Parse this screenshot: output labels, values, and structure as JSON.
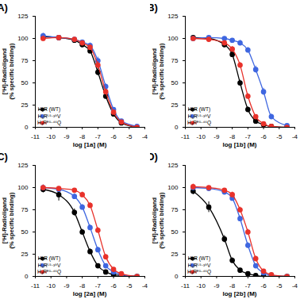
{
  "chart_data": [
    {
      "type": "line",
      "title": "A)",
      "xlabel": "log [1a] (M)",
      "ylabel": "[³H]-Radioligand\n(% specific binding)",
      "xlim": [
        -11,
        -4
      ],
      "xticks": [
        -11,
        -10,
        -9,
        -8,
        -7,
        -6,
        -5,
        -4
      ],
      "ylim": [
        0,
        125
      ],
      "yticks": [
        0,
        25,
        50,
        75,
        100,
        125
      ],
      "legend": "lower left",
      "x": [
        -10.5,
        -9.5,
        -8.5,
        -8,
        -7.5,
        -7,
        -6.5,
        -6,
        -5.5,
        -4.5
      ],
      "series": [
        {
          "name": "H₄R (WT)",
          "color": "#000000",
          "marker": "circle",
          "values": [
            102,
            101,
            98,
            93,
            86,
            62,
            35,
            15,
            5,
            0
          ],
          "errors": [
            3,
            2,
            2,
            2,
            3,
            4,
            3,
            2,
            2,
            1
          ]
        },
        {
          "name": "H₄Rᴸ⁵·³⁹V",
          "color": "#3f67e0",
          "marker": "circle",
          "values": [
            103,
            101,
            99,
            96,
            92,
            75,
            46,
            20,
            7,
            1
          ],
          "errors": [
            3,
            2,
            2,
            2,
            3,
            4,
            3,
            2,
            2,
            1
          ]
        },
        {
          "name": "H₄Rᴱ⁵·⁴⁶Q",
          "color": "#e8322b",
          "marker": "circle",
          "values": [
            100,
            101,
            99,
            95,
            90,
            70,
            40,
            17,
            6,
            0
          ],
          "errors": [
            3,
            2,
            2,
            2,
            3,
            4,
            3,
            2,
            2,
            1
          ]
        }
      ]
    },
    {
      "type": "line",
      "title": "B)",
      "xlabel": "log [1b] (M)",
      "ylabel": "[³H]-Radioligand\n(% specific binding)",
      "xlim": [
        -11,
        -4
      ],
      "xticks": [
        -11,
        -10,
        -9,
        -8,
        -7,
        -6,
        -5,
        -4
      ],
      "ylim": [
        0,
        125
      ],
      "yticks": [
        0,
        25,
        50,
        75,
        100,
        125
      ],
      "legend": "lower left",
      "x": [
        -10.5,
        -9.5,
        -8.5,
        -8,
        -7.5,
        -7,
        -6.5,
        -6,
        -5.5,
        -4.5
      ],
      "series": [
        {
          "name": "H₄R (WT)",
          "color": "#000000",
          "marker": "circle",
          "values": [
            101,
            100,
            93,
            82,
            50,
            20,
            7,
            3,
            1,
            0
          ],
          "errors": [
            2,
            2,
            3,
            3,
            3,
            3,
            2,
            2,
            1,
            1
          ]
        },
        {
          "name": "H₄Rᴸ⁵·³⁹V",
          "color": "#3f67e0",
          "marker": "circle",
          "values": [
            100,
            101,
            100,
            98,
            95,
            87,
            65,
            40,
            12,
            2
          ],
          "errors": [
            2,
            2,
            2,
            2,
            3,
            3,
            4,
            4,
            3,
            1
          ]
        },
        {
          "name": "H₄Rᴱ⁵·⁴⁶Q",
          "color": "#e8322b",
          "marker": "circle",
          "values": [
            100,
            99,
            95,
            88,
            70,
            35,
            12,
            4,
            1,
            0
          ],
          "errors": [
            2,
            2,
            3,
            3,
            3,
            3,
            2,
            2,
            1,
            1
          ]
        }
      ]
    },
    {
      "type": "line",
      "title": "C)",
      "xlabel": "log [2a] (M)",
      "ylabel": "[³H]-Radioligand\n(% specific binding)",
      "xlim": [
        -11,
        -4
      ],
      "xticks": [
        -11,
        -10,
        -9,
        -8,
        -7,
        -6,
        -5,
        -4
      ],
      "ylim": [
        0,
        125
      ],
      "yticks": [
        0,
        25,
        50,
        75,
        100,
        125
      ],
      "legend": "lower left",
      "x": [
        -10.5,
        -9.5,
        -8.5,
        -8,
        -7.5,
        -7,
        -6.5,
        -6,
        -5.5,
        -4.5
      ],
      "series": [
        {
          "name": "H₄R (WT)",
          "color": "#000000",
          "marker": "circle",
          "values": [
            98,
            92,
            72,
            50,
            28,
            12,
            5,
            2,
            1,
            0
          ],
          "errors": [
            4,
            7,
            4,
            3,
            3,
            2,
            2,
            1,
            1,
            1
          ]
        },
        {
          "name": "H₄Rᴸ⁵·³⁹V",
          "color": "#3f67e0",
          "marker": "circle",
          "values": [
            100,
            98,
            90,
            78,
            55,
            30,
            12,
            5,
            2,
            0
          ],
          "errors": [
            3,
            3,
            3,
            3,
            3,
            3,
            2,
            2,
            1,
            1
          ]
        },
        {
          "name": "H₄Rᴱ⁵·⁴⁶Q",
          "color": "#e8322b",
          "marker": "circle",
          "values": [
            100,
            99,
            97,
            92,
            80,
            52,
            22,
            8,
            3,
            0
          ],
          "errors": [
            3,
            2,
            2,
            3,
            3,
            3,
            3,
            2,
            1,
            1
          ]
        }
      ]
    },
    {
      "type": "line",
      "title": "D)",
      "xlabel": "log [2b] (M)",
      "ylabel": "[³H]-Radioligand\n(% specific binding)",
      "xlim": [
        -11,
        -4
      ],
      "xticks": [
        -11,
        -10,
        -9,
        -8,
        -7,
        -6,
        -5,
        -4
      ],
      "ylim": [
        0,
        125
      ],
      "yticks": [
        0,
        25,
        50,
        75,
        100,
        125
      ],
      "legend": "lower left",
      "x": [
        -10.5,
        -9.5,
        -8.5,
        -8,
        -7.5,
        -7,
        -6.5,
        -6,
        -5.5,
        -4.5
      ],
      "series": [
        {
          "name": "H₄R (WT)",
          "color": "#000000",
          "marker": "circle",
          "values": [
            96,
            78,
            42,
            18,
            7,
            3,
            1,
            0,
            0,
            0
          ],
          "errors": [
            4,
            6,
            4,
            3,
            2,
            1,
            1,
            1,
            1,
            1
          ]
        },
        {
          "name": "H₄Rᴸ⁵·³⁹V",
          "color": "#3f67e0",
          "marker": "circle",
          "values": [
            100,
            99,
            95,
            88,
            65,
            35,
            12,
            4,
            1,
            0
          ],
          "errors": [
            3,
            2,
            3,
            3,
            3,
            3,
            2,
            2,
            1,
            1
          ]
        },
        {
          "name": "H₄Rᴱ⁵·⁴⁶Q",
          "color": "#e8322b",
          "marker": "circle",
          "values": [
            101,
            100,
            97,
            92,
            75,
            50,
            20,
            6,
            2,
            0
          ],
          "errors": [
            3,
            2,
            2,
            3,
            3,
            3,
            3,
            2,
            1,
            1
          ]
        }
      ]
    }
  ]
}
